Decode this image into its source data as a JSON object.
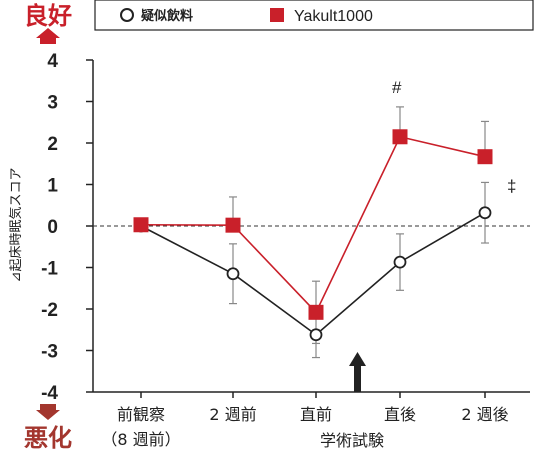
{
  "chart_data": {
    "type": "line",
    "title": "",
    "xlabel": "学術試験",
    "ylabel": "⊿起床時眠気スコア",
    "ylim": [
      -4,
      4
    ],
    "yticks": [
      "4",
      "3",
      "2",
      "1",
      "0",
      "-1",
      "-2",
      "-3",
      "-4"
    ],
    "categories": [
      {
        "line1": "前観察",
        "line2": "（8 週前）"
      },
      {
        "line1": "2 週前",
        "line2": ""
      },
      {
        "line1": "直前",
        "line2": ""
      },
      {
        "line1": "直後",
        "line2": ""
      },
      {
        "line1": "2 週後",
        "line2": ""
      }
    ],
    "series": [
      {
        "name": "疑似飲料",
        "marker": "circle-open",
        "color": "#222222",
        "values": [
          0.0,
          -1.15,
          -2.62,
          -0.87,
          0.32
        ],
        "error": [
          0.0,
          0.72,
          0.55,
          0.68,
          0.73
        ]
      },
      {
        "name": "Yakult1000",
        "marker": "square-filled",
        "color": "#c9202a",
        "values": [
          0.03,
          0.02,
          -2.08,
          2.15,
          1.67
        ],
        "error": [
          0.0,
          0.68,
          0.75,
          0.72,
          0.85
        ]
      }
    ],
    "annotations": [
      {
        "text": "#",
        "category_index": 3,
        "y": 3.35
      },
      {
        "text": "‡",
        "category_index": 4,
        "y": 0.98
      }
    ],
    "event_arrow_category_index": 2.5,
    "reference_line": 0,
    "grid": false,
    "legend_position": "top"
  },
  "labels": {
    "good": "良好",
    "bad": "悪化"
  },
  "colors": {
    "good": "#c9202a",
    "bad": "#a3362e",
    "series_red": "#c9202a",
    "series_black": "#222222"
  }
}
